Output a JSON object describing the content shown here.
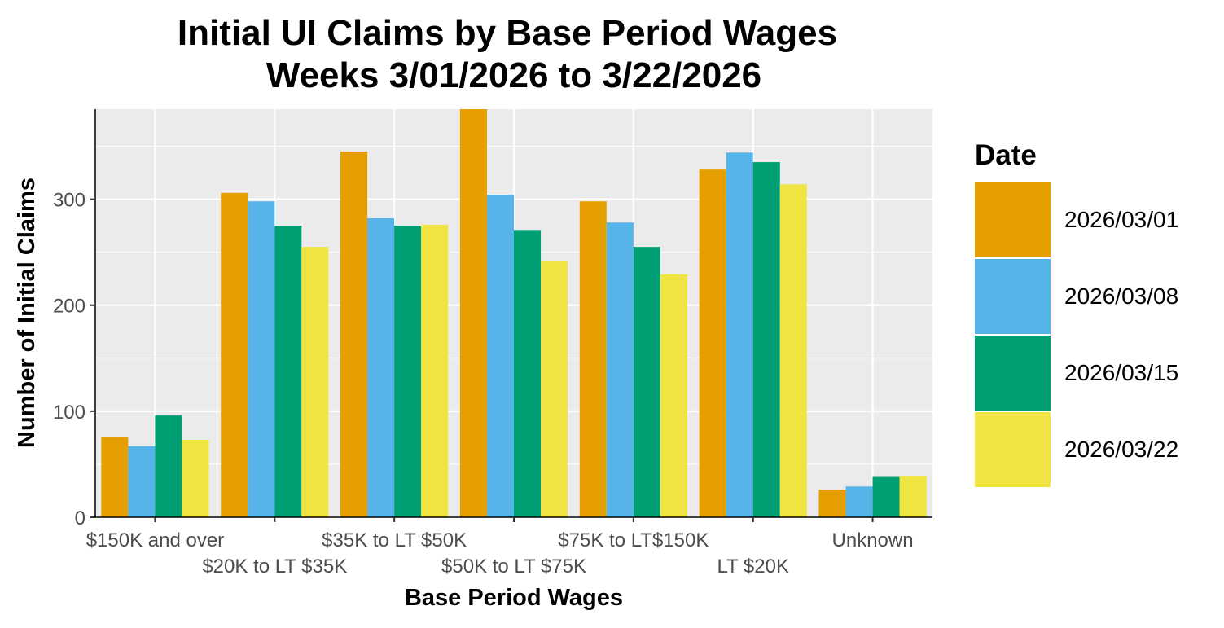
{
  "chart_data": {
    "type": "bar",
    "title": "Initial UI Claims by Base Period Wages",
    "subtitle": "Weeks 3/01/2026 to 3/22/2026",
    "xlabel": "Base Period Wages",
    "ylabel": "Number of Initial Claims",
    "ylim": [
      0,
      385
    ],
    "yticks": [
      0,
      100,
      200,
      300
    ],
    "grid": true,
    "legend_title": "Date",
    "legend_position": "right",
    "categories": [
      "$150K and over",
      "$20K to LT $35K",
      "$35K to LT $50K",
      "$50K to LT $75K",
      "$75K to LT$150K",
      "LT $20K",
      "Unknown"
    ],
    "series": [
      {
        "name": "2026/03/01",
        "color": "#E69F00",
        "values": [
          76,
          306,
          345,
          385,
          298,
          328,
          26
        ]
      },
      {
        "name": "2026/03/08",
        "color": "#56B4E9",
        "values": [
          67,
          298,
          282,
          304,
          278,
          344,
          29
        ]
      },
      {
        "name": "2026/03/15",
        "color": "#009E73",
        "values": [
          96,
          275,
          275,
          271,
          255,
          335,
          38
        ]
      },
      {
        "name": "2026/03/22",
        "color": "#F0E442",
        "values": [
          73,
          255,
          276,
          242,
          229,
          314,
          39
        ]
      }
    ]
  }
}
